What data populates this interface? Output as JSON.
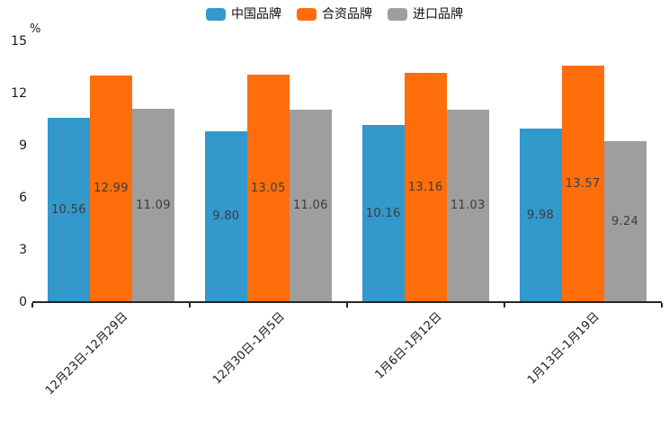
{
  "chart_data": {
    "type": "bar",
    "title": "",
    "unit_label": "%",
    "legend_position": "top",
    "grid": false,
    "value_label_position": "center",
    "categories": [
      "12月23日-12月29日",
      "12月30日-1月5日",
      "1月6日-1月12日",
      "1月13日-1月19日"
    ],
    "series": [
      {
        "name": "中国品牌",
        "color": "#3398CB",
        "values": [
          10.56,
          9.8,
          10.16,
          9.98
        ],
        "labels": [
          "10.56",
          "9.80",
          "10.16",
          "9.98"
        ]
      },
      {
        "name": "合资品牌",
        "color": "#FF6E0A",
        "values": [
          12.99,
          13.05,
          13.16,
          13.57
        ],
        "labels": [
          "12.99",
          "13.05",
          "13.16",
          "13.57"
        ]
      },
      {
        "name": "进口品牌",
        "color": "#9E9E9E",
        "values": [
          11.09,
          11.06,
          11.03,
          9.24
        ],
        "labels": [
          "11.09",
          "11.06",
          "11.03",
          "9.24"
        ]
      }
    ],
    "y_axis": {
      "min": 0,
      "max": 15,
      "ticks": [
        0,
        3,
        6,
        9,
        12,
        15
      ]
    }
  }
}
